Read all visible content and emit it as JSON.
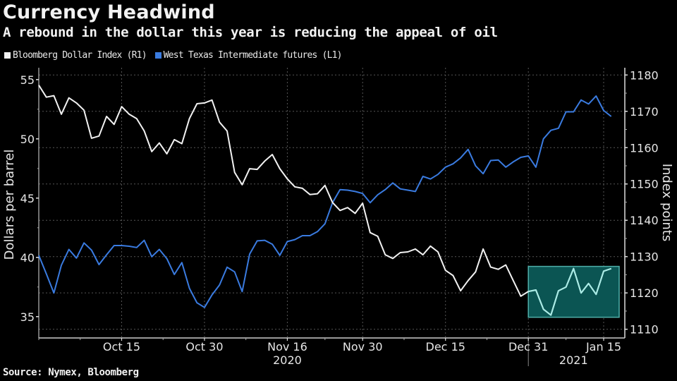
{
  "header": {
    "title": "Currency Headwind",
    "subtitle": "A rebound in the dollar this year is reducing the appeal of oil"
  },
  "footer": {
    "source": "Source: Nymex, Bloomberg"
  },
  "colors": {
    "background": "#000000",
    "dollar_series": "#f2f2f2",
    "wti_series": "#3a7be0",
    "highlight_fill": "#0b5553",
    "highlight_border": "#4fb0aa",
    "highlight_line": "#a8ece6",
    "grid": "#555555"
  },
  "chart_data": {
    "type": "line",
    "title": "Currency Headwind",
    "subtitle": "A rebound in the dollar this year is reducing the appeal of oil",
    "legend": [
      {
        "name": "Bloomberg Dollar Index (R1)",
        "color": "#f2f2f2"
      },
      {
        "name": "West Texas Intermediate futures (L1)",
        "color": "#3a7be0"
      }
    ],
    "legend_position": "top-left",
    "x_tick_labels": [
      {
        "label": "Oct 15",
        "index": 11
      },
      {
        "label": "Oct 30",
        "index": 22
      },
      {
        "label": "Nov 16",
        "index": 33
      },
      {
        "label": "Nov 30",
        "index": 43
      },
      {
        "label": "Dec 15",
        "index": 54
      },
      {
        "label": "Dec 31",
        "index": 65
      },
      {
        "label": "Jan 15",
        "index": 75
      }
    ],
    "x_year_labels": [
      {
        "label": "2020",
        "index": 33
      },
      {
        "label": "2021",
        "index": 71
      }
    ],
    "year_separator_index": 65,
    "x_count": 77,
    "left_axis": {
      "label": "Dollars per barrel",
      "ylim": [
        33.2,
        56
      ],
      "ticks": [
        35,
        40,
        45,
        50,
        55
      ]
    },
    "right_axis": {
      "label": "Index points",
      "ylim": [
        1107.6,
        1182
      ],
      "ticks": [
        1110,
        1120,
        1130,
        1140,
        1150,
        1160,
        1170,
        1180
      ]
    },
    "grid": true,
    "highlight": {
      "from_index": 65,
      "to_index": 77,
      "y_range_right": [
        1113.3,
        1127.3
      ]
    },
    "series": [
      {
        "name": "Bloomberg Dollar Index (R1)",
        "axis": "right",
        "values": [
          1177.2,
          1173.9,
          1174.3,
          1169.2,
          1173.7,
          1172.3,
          1170.3,
          1162.6,
          1163.2,
          1168.6,
          1166.4,
          1171.3,
          1169.2,
          1168.0,
          1164.6,
          1158.9,
          1161.3,
          1158.3,
          1162.2,
          1161.1,
          1168.0,
          1172.1,
          1172.3,
          1173.1,
          1167.0,
          1164.6,
          1153.2,
          1149.8,
          1154.2,
          1154.0,
          1156.3,
          1158.1,
          1154.2,
          1151.4,
          1149.2,
          1148.8,
          1147.1,
          1147.3,
          1149.6,
          1144.9,
          1142.7,
          1143.5,
          1141.9,
          1144.7,
          1136.6,
          1135.6,
          1130.5,
          1129.5,
          1131.1,
          1131.3,
          1132.1,
          1130.5,
          1132.9,
          1131.3,
          1126.2,
          1124.8,
          1120.6,
          1123.4,
          1125.8,
          1132.1,
          1127.1,
          1126.5,
          1127.7,
          1123.4,
          1119.1,
          1120.4,
          1120.8,
          1115.5,
          1113.9,
          1120.6,
          1121.6,
          1126.7,
          1120.0,
          1122.6,
          1119.6,
          1126.0,
          1126.7
        ]
      },
      {
        "name": "West Texas Intermediate futures (L1)",
        "axis": "left",
        "values": [
          40.17,
          38.61,
          37.0,
          39.33,
          40.67,
          39.94,
          41.22,
          40.61,
          39.39,
          40.22,
          41.0,
          41.0,
          40.94,
          40.83,
          41.44,
          40.06,
          40.67,
          39.89,
          38.56,
          39.56,
          37.39,
          36.17,
          35.78,
          36.83,
          37.67,
          39.17,
          38.78,
          37.11,
          40.28,
          41.39,
          41.44,
          41.11,
          40.17,
          41.33,
          41.5,
          41.83,
          41.83,
          42.17,
          42.83,
          44.61,
          45.72,
          45.67,
          45.56,
          45.39,
          44.61,
          45.28,
          45.72,
          46.28,
          45.78,
          45.67,
          45.56,
          46.83,
          46.61,
          47.0,
          47.61,
          47.89,
          48.39,
          49.11,
          47.72,
          47.06,
          48.17,
          48.22,
          47.61,
          48.06,
          48.44,
          48.56,
          47.61,
          50.0,
          50.72,
          50.89,
          52.28,
          52.28,
          53.28,
          52.94,
          53.61,
          52.39,
          51.89
        ]
      }
    ]
  }
}
